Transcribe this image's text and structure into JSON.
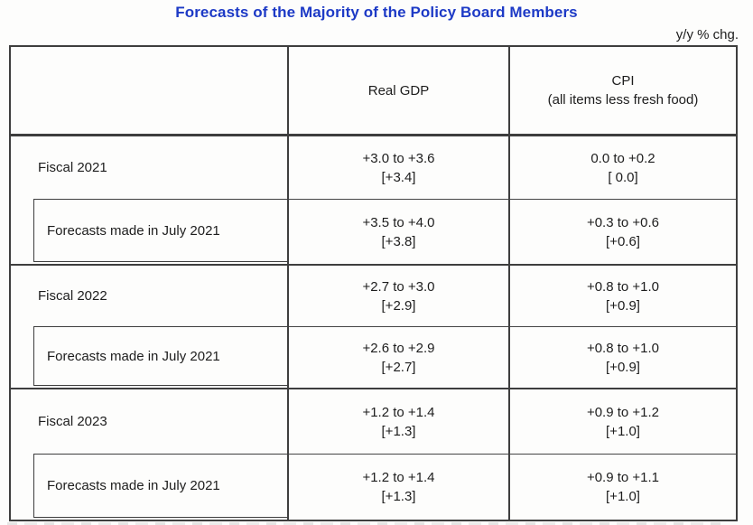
{
  "page": {
    "title": "Forecasts of the Majority of the Policy Board Members",
    "unit_label": "y/y % chg.",
    "accent_color": "#1d3ac6",
    "border_color": "#3e3e3e"
  },
  "table": {
    "header": {
      "col1": "",
      "real_gdp": "Real GDP",
      "cpi_line1": "CPI",
      "cpi_line2": "(all items less fresh food)"
    },
    "groups": [
      {
        "label": "Fiscal 2021",
        "gdp_range": "+3.0 to +3.6",
        "gdp_median": "[+3.4]",
        "cpi_range": "0.0 to +0.2",
        "cpi_median": "[ 0.0]",
        "prev": {
          "label": "Forecasts made in July 2021",
          "gdp_range": "+3.5 to +4.0",
          "gdp_median": "[+3.8]",
          "cpi_range": "+0.3 to +0.6",
          "cpi_median": "[+0.6]"
        }
      },
      {
        "label": "Fiscal 2022",
        "gdp_range": "+2.7 to +3.0",
        "gdp_median": "[+2.9]",
        "cpi_range": "+0.8 to +1.0",
        "cpi_median": "[+0.9]",
        "prev": {
          "label": "Forecasts made in July 2021",
          "gdp_range": "+2.6 to +2.9",
          "gdp_median": "[+2.7]",
          "cpi_range": "+0.8 to +1.0",
          "cpi_median": "[+0.9]"
        }
      },
      {
        "label": "Fiscal 2023",
        "gdp_range": "+1.2 to +1.4",
        "gdp_median": "[+1.3]",
        "cpi_range": "+0.9 to +1.2",
        "cpi_median": "[+1.0]",
        "prev": {
          "label": "Forecasts made in July 2021",
          "gdp_range": "+1.2 to +1.4",
          "gdp_median": "[+1.3]",
          "cpi_range": "+0.9 to +1.1",
          "cpi_median": "[+1.0]"
        }
      }
    ]
  }
}
